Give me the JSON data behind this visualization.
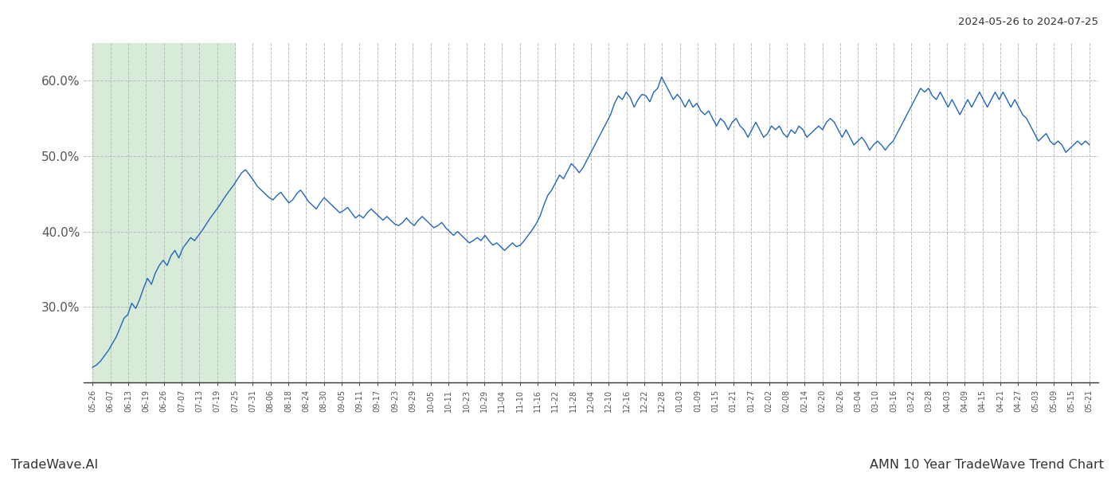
{
  "title_right": "2024-05-26 to 2024-07-25",
  "footer_left": "TradeWave.AI",
  "footer_right": "AMN 10 Year TradeWave Trend Chart",
  "bg_color": "#ffffff",
  "line_color": "#2266bb",
  "shade_color": "#d8ead8",
  "ylim": [
    20.0,
    65.0
  ],
  "yticks": [
    30.0,
    40.0,
    50.0,
    60.0
  ],
  "shade_x_start_label": "05-26",
  "shade_x_end_label": "07-25",
  "x_labels": [
    "05-26",
    "06-07",
    "06-13",
    "06-19",
    "06-26",
    "07-07",
    "07-13",
    "07-19",
    "07-25",
    "07-31",
    "08-06",
    "08-18",
    "08-24",
    "08-30",
    "09-05",
    "09-11",
    "09-17",
    "09-23",
    "09-29",
    "10-05",
    "10-11",
    "10-23",
    "10-29",
    "11-04",
    "11-10",
    "11-16",
    "11-22",
    "11-28",
    "12-04",
    "12-10",
    "12-16",
    "12-22",
    "12-28",
    "01-03",
    "01-09",
    "01-15",
    "01-21",
    "01-27",
    "02-02",
    "02-08",
    "02-14",
    "02-20",
    "02-26",
    "03-04",
    "03-10",
    "03-16",
    "03-22",
    "03-28",
    "04-03",
    "04-09",
    "04-15",
    "04-21",
    "04-27",
    "05-03",
    "05-09",
    "05-15",
    "05-21"
  ],
  "y_values": [
    22.0,
    22.3,
    22.8,
    23.5,
    24.2,
    25.1,
    26.0,
    27.2,
    28.5,
    29.0,
    30.5,
    29.8,
    31.0,
    32.5,
    33.8,
    33.0,
    34.5,
    35.5,
    36.2,
    35.5,
    36.8,
    37.5,
    36.5,
    37.8,
    38.5,
    39.2,
    38.8,
    39.5,
    40.2,
    41.0,
    41.8,
    42.5,
    43.2,
    44.0,
    44.8,
    45.5,
    46.2,
    47.0,
    47.8,
    48.2,
    47.5,
    46.8,
    46.0,
    45.5,
    45.0,
    44.5,
    44.2,
    44.8,
    45.2,
    44.5,
    43.8,
    44.2,
    45.0,
    45.5,
    44.8,
    44.0,
    43.5,
    43.0,
    43.8,
    44.5,
    44.0,
    43.5,
    43.0,
    42.5,
    42.8,
    43.2,
    42.5,
    41.8,
    42.2,
    41.8,
    42.5,
    43.0,
    42.5,
    42.0,
    41.5,
    42.0,
    41.5,
    41.0,
    40.8,
    41.2,
    41.8,
    41.2,
    40.8,
    41.5,
    42.0,
    41.5,
    41.0,
    40.5,
    40.8,
    41.2,
    40.5,
    40.0,
    39.5,
    40.0,
    39.5,
    39.0,
    38.5,
    38.8,
    39.2,
    38.8,
    39.5,
    38.8,
    38.2,
    38.5,
    38.0,
    37.5,
    38.0,
    38.5,
    38.0,
    38.2,
    38.8,
    39.5,
    40.2,
    41.0,
    42.0,
    43.5,
    44.8,
    45.5,
    46.5,
    47.5,
    47.0,
    48.0,
    49.0,
    48.5,
    47.8,
    48.5,
    49.5,
    50.5,
    51.5,
    52.5,
    53.5,
    54.5,
    55.5,
    57.0,
    58.0,
    57.5,
    58.5,
    57.8,
    56.5,
    57.5,
    58.2,
    58.0,
    57.2,
    58.5,
    59.0,
    60.5,
    59.5,
    58.5,
    57.5,
    58.2,
    57.5,
    56.5,
    57.5,
    56.5,
    57.0,
    56.0,
    55.5,
    56.0,
    55.0,
    54.0,
    55.0,
    54.5,
    53.5,
    54.5,
    55.0,
    54.0,
    53.5,
    52.5,
    53.5,
    54.5,
    53.5,
    52.5,
    53.0,
    54.0,
    53.5,
    54.0,
    53.0,
    52.5,
    53.5,
    53.0,
    54.0,
    53.5,
    52.5,
    53.0,
    53.5,
    54.0,
    53.5,
    54.5,
    55.0,
    54.5,
    53.5,
    52.5,
    53.5,
    52.5,
    51.5,
    52.0,
    52.5,
    51.8,
    50.8,
    51.5,
    52.0,
    51.5,
    50.8,
    51.5,
    52.0,
    53.0,
    54.0,
    55.0,
    56.0,
    57.0,
    58.0,
    59.0,
    58.5,
    59.0,
    58.0,
    57.5,
    58.5,
    57.5,
    56.5,
    57.5,
    56.5,
    55.5,
    56.5,
    57.5,
    56.5,
    57.5,
    58.5,
    57.5,
    56.5,
    57.5,
    58.5,
    57.5,
    58.5,
    57.5,
    56.5,
    57.5,
    56.5,
    55.5,
    55.0,
    54.0,
    53.0,
    52.0,
    52.5,
    53.0,
    52.0,
    51.5,
    52.0,
    51.5,
    50.5,
    51.0,
    51.5,
    52.0,
    51.5,
    52.0,
    51.5
  ]
}
